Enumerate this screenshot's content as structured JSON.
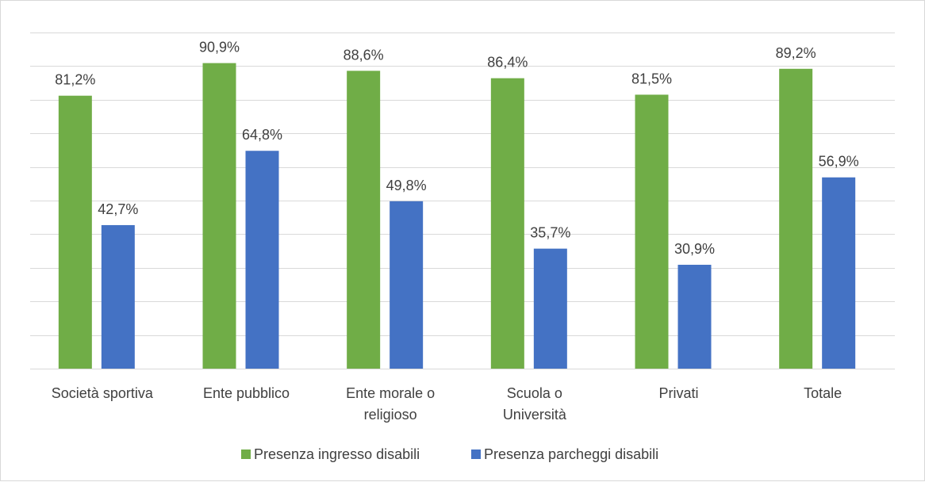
{
  "chart_data": {
    "type": "bar",
    "categories": [
      [
        "Società sportiva"
      ],
      [
        "Ente pubblico"
      ],
      [
        "Ente morale o",
        "religioso"
      ],
      [
        "Scuola o",
        "Università"
      ],
      [
        "Privati"
      ],
      [
        "Totale"
      ]
    ],
    "series": [
      {
        "name": "Presenza ingresso disabili",
        "color": "#70ad47",
        "values": [
          81.2,
          90.9,
          88.6,
          86.4,
          81.5,
          89.2
        ],
        "labels": [
          "81,2%",
          "90,9%",
          "88,6%",
          "86,4%",
          "81,5%",
          "89,2%"
        ]
      },
      {
        "name": "Presenza parcheggi disabili",
        "color": "#4472c4",
        "values": [
          42.7,
          64.8,
          49.8,
          35.7,
          30.9,
          56.9
        ],
        "labels": [
          "42,7%",
          "64,8%",
          "49,8%",
          "35,7%",
          "30,9%",
          "56,9%"
        ]
      }
    ],
    "ylim": [
      0,
      100
    ],
    "y_grid_step": 10,
    "grid": true,
    "y_tick_labels_shown": false,
    "legend_position": "bottom",
    "title": "",
    "xlabel": "",
    "ylabel": ""
  }
}
